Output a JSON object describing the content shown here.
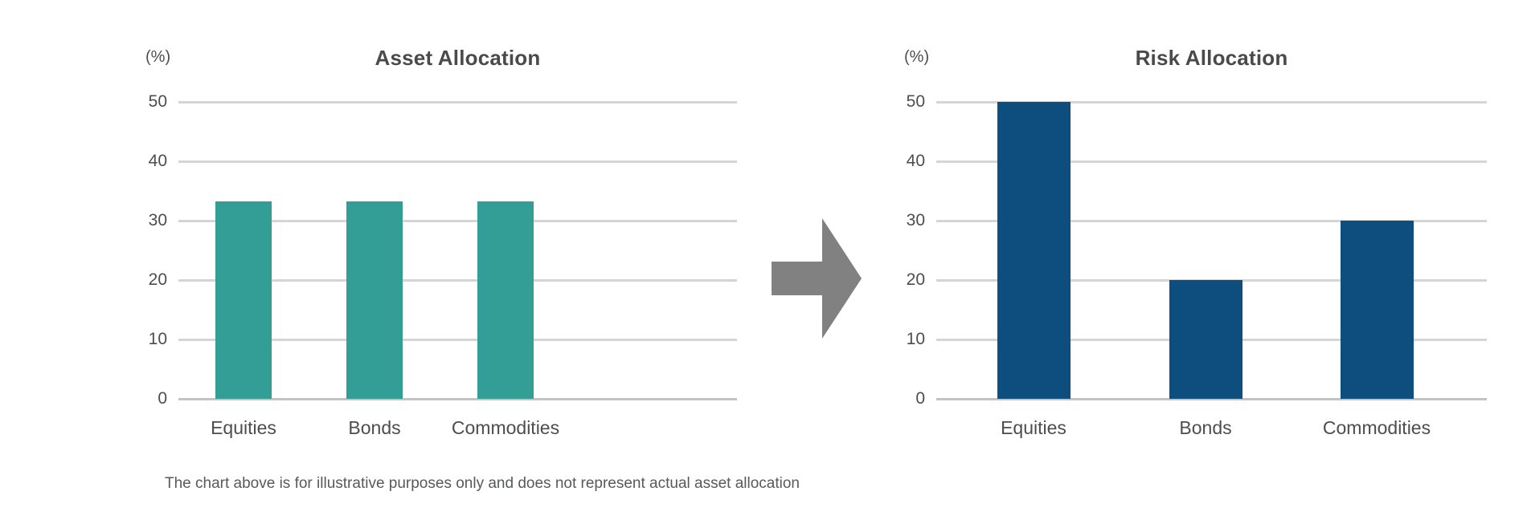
{
  "page": {
    "background": "#ffffff",
    "footnote": "The chart above is for illustrative purposes only and does not represent actual asset allocation"
  },
  "arrow": {
    "icon": "right-arrow-icon",
    "direction": "right",
    "color": "#818181"
  },
  "colors": {
    "teal_bar": "#329E96",
    "navy_bar": "#0D4E7F",
    "gridline": "#D5D5D5",
    "baseline": "#C3C3C3",
    "text": "#4D4D4D",
    "title_text": "#4A4A4A",
    "footnote_text": "#58595B"
  },
  "chart_data": [
    {
      "type": "bar",
      "title": "Asset Allocation",
      "unit_label": "(%)",
      "categories": [
        "Equities",
        "Bonds",
        "Commodities"
      ],
      "values": [
        33.3,
        33.3,
        33.3
      ],
      "bar_color": "#329E96",
      "xlabel": "",
      "ylabel": "(%)",
      "ylim": [
        0,
        50
      ],
      "yticks": [
        0,
        10,
        20,
        30,
        40,
        50
      ],
      "grid": true,
      "legend": "none"
    },
    {
      "type": "bar",
      "title": "Risk Allocation",
      "unit_label": "(%)",
      "categories": [
        "Equities",
        "Bonds",
        "Commodities"
      ],
      "values": [
        50,
        20,
        30
      ],
      "bar_color": "#0D4E7F",
      "xlabel": "",
      "ylabel": "(%)",
      "ylim": [
        0,
        50
      ],
      "yticks": [
        0,
        10,
        20,
        30,
        40,
        50
      ],
      "grid": true,
      "legend": "none"
    }
  ]
}
